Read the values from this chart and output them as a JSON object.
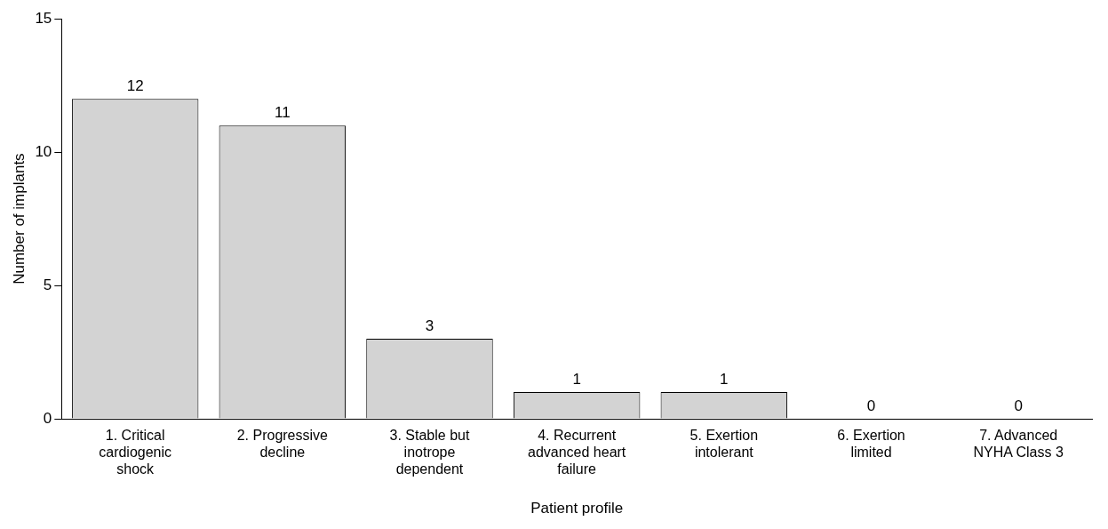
{
  "chart_data": {
    "type": "bar",
    "xlabel": "Patient profile",
    "ylabel": "Number of implants",
    "categories": [
      "1. Critical cardiogenic shock",
      "2. Progressive decline",
      "3. Stable but inotrope dependent",
      "4. Recurrent advanced heart failure",
      "5. Exertion intolerant",
      "6. Exertion limited",
      "7. Advanced NYHA Class 3"
    ],
    "values": [
      12,
      11,
      3,
      1,
      1,
      0,
      0
    ],
    "color": "#d3d3d3",
    "ylim": [
      0,
      15
    ],
    "yticks": [
      0,
      5,
      10,
      15
    ],
    "grid": false,
    "legend": false,
    "data_labels": true
  }
}
